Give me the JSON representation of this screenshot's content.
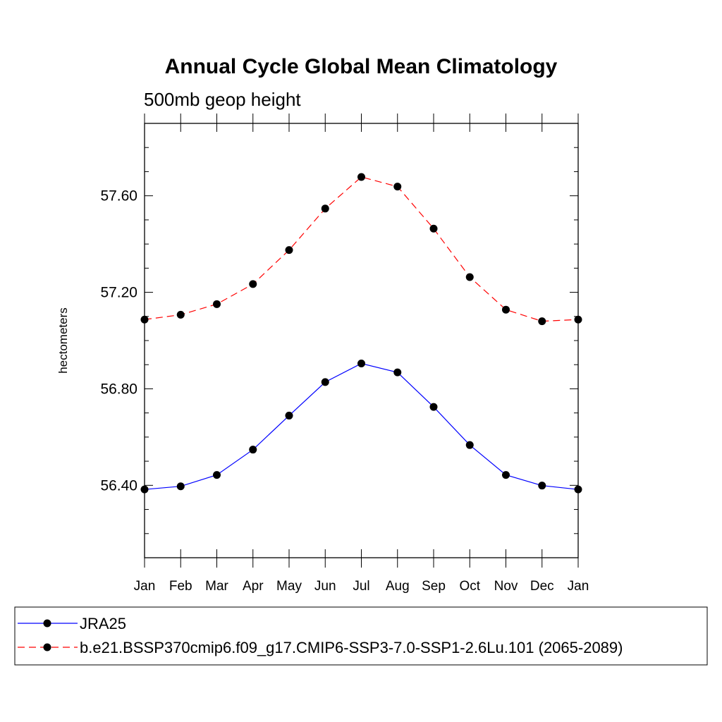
{
  "chart_data": {
    "type": "line",
    "title": "Annual Cycle Global Mean Climatology",
    "subtitle": "500mb geop height",
    "xlabel": "",
    "ylabel": "hectometers",
    "categories": [
      "Jan",
      "Feb",
      "Mar",
      "Apr",
      "May",
      "Jun",
      "Jul",
      "Aug",
      "Sep",
      "Oct",
      "Nov",
      "Dec",
      "Jan"
    ],
    "ylim": [
      56.1,
      57.9
    ],
    "yticks": [
      "56.40",
      "56.80",
      "57.20",
      "57.60"
    ],
    "grid": false,
    "legend_position": "bottom",
    "series": [
      {
        "name": "JRA25",
        "color": "#0000ff",
        "dash": "solid",
        "values": [
          56.383,
          56.396,
          56.443,
          56.548,
          56.689,
          56.828,
          56.905,
          56.868,
          56.725,
          56.567,
          56.443,
          56.399,
          56.383
        ]
      },
      {
        "name": "b.e21.BSSP370cmip6.f09_g17.CMIP6-SSP3-7.0-SSP1-2.6Lu.101 (2065-2089)",
        "color": "#ff0000",
        "dash": "dashed",
        "values": [
          57.087,
          57.107,
          57.151,
          57.234,
          57.375,
          57.547,
          57.678,
          57.638,
          57.464,
          57.263,
          57.128,
          57.08,
          57.087
        ]
      }
    ]
  }
}
